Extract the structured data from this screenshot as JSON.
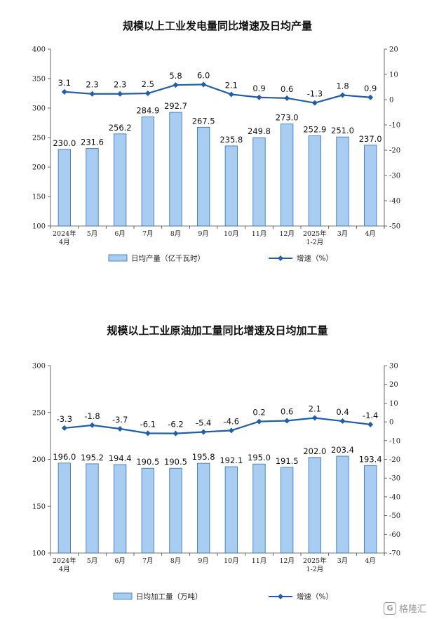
{
  "chart_data": [
    {
      "type": "bar",
      "title": "规模以上工业发电量同比增速及日均产量",
      "categories": [
        [
          "2024年",
          "4月"
        ],
        [
          "5月"
        ],
        [
          "6月"
        ],
        [
          "7月"
        ],
        [
          "8月"
        ],
        [
          "9月"
        ],
        [
          "10月"
        ],
        [
          "11月"
        ],
        [
          "12月"
        ],
        [
          "2025年",
          "1-2月"
        ],
        [
          "3月"
        ],
        [
          "4月"
        ]
      ],
      "series": [
        {
          "name": "日均产量（亿千瓦时）",
          "type": "bar",
          "axis": "left",
          "values": [
            230.0,
            231.6,
            256.2,
            284.9,
            292.7,
            267.5,
            235.8,
            249.8,
            273.0,
            252.9,
            251.0,
            237.0
          ],
          "labels": [
            "230.0",
            "231.6",
            "256.2",
            "284.9",
            "292.7",
            "267.5",
            "235.8",
            "249.8",
            "273.0",
            "252.9",
            "251.0",
            "237.0"
          ]
        },
        {
          "name": "增速（%）",
          "type": "line",
          "axis": "right",
          "values": [
            3.1,
            2.3,
            2.3,
            2.5,
            5.8,
            6.0,
            2.1,
            0.9,
            0.6,
            -1.3,
            1.8,
            0.9
          ],
          "labels": [
            "3.1",
            "2.3",
            "2.3",
            "2.5",
            "5.8",
            "6.0",
            "2.1",
            "0.9",
            "0.6",
            "-1.3",
            "1.8",
            "0.9"
          ]
        }
      ],
      "ylim_left": [
        100,
        400
      ],
      "yticks_left": [
        "100",
        "150",
        "200",
        "250",
        "300",
        "350",
        "400"
      ],
      "ylim_right": [
        -50,
        20
      ],
      "yticks_right": [
        "-50",
        "-40",
        "-30",
        "-20",
        "-10",
        "0",
        "10",
        "20"
      ],
      "legend_position": "bottom-center",
      "grid": false,
      "colors": {
        "bar_fill": "#a9cdf0",
        "bar_stroke": "#2f6fb3",
        "line": "#1f5fa8"
      }
    },
    {
      "type": "bar",
      "title": "规模以上工业原油加工量同比增速及日均加工量",
      "categories": [
        [
          "2024年",
          "4月"
        ],
        [
          "5月"
        ],
        [
          "6月"
        ],
        [
          "7月"
        ],
        [
          "8月"
        ],
        [
          "9月"
        ],
        [
          "10月"
        ],
        [
          "11月"
        ],
        [
          "12月"
        ],
        [
          "2025年",
          "1-2月"
        ],
        [
          "3月"
        ],
        [
          "4月"
        ]
      ],
      "series": [
        {
          "name": "日均加工量（万吨）",
          "type": "bar",
          "axis": "left",
          "values": [
            196.0,
            195.2,
            194.4,
            190.5,
            190.5,
            195.8,
            192.1,
            195.0,
            191.5,
            202.0,
            203.4,
            193.4
          ],
          "labels": [
            "196.0",
            "195.2",
            "194.4",
            "190.5",
            "190.5",
            "195.8",
            "192.1",
            "195.0",
            "191.5",
            "202.0",
            "203.4",
            "193.4"
          ]
        },
        {
          "name": "增速（%）",
          "type": "line",
          "axis": "right",
          "values": [
            -3.3,
            -1.8,
            -3.7,
            -6.1,
            -6.2,
            -5.4,
            -4.6,
            0.2,
            0.6,
            2.1,
            0.4,
            -1.4
          ],
          "labels": [
            "-3.3",
            "-1.8",
            "-3.7",
            "-6.1",
            "-6.2",
            "-5.4",
            "-4.6",
            "0.2",
            "0.6",
            "2.1",
            "0.4",
            "-1.4"
          ]
        }
      ],
      "ylim_left": [
        100,
        300
      ],
      "yticks_left": [
        "100",
        "150",
        "200",
        "250",
        "300"
      ],
      "ylim_right": [
        -70,
        30
      ],
      "yticks_right": [
        "-70",
        "-60",
        "-50",
        "-40",
        "-30",
        "-20",
        "-10",
        "0",
        "10",
        "20",
        "30"
      ],
      "legend_position": "bottom-center",
      "grid": false,
      "colors": {
        "bar_fill": "#a9cdf0",
        "bar_stroke": "#2f6fb3",
        "line": "#1f5fa8"
      }
    }
  ],
  "watermark": {
    "text": "格隆汇",
    "icon": "glh-logo-icon"
  }
}
